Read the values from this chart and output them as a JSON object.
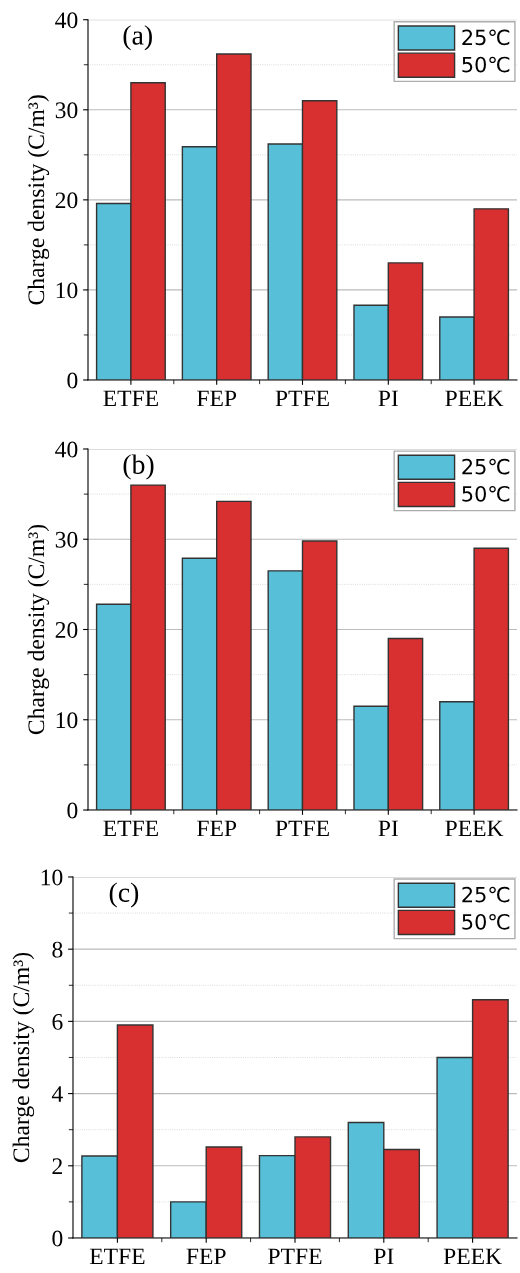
{
  "chart_data": [
    {
      "type": "bar",
      "title": "(a)",
      "ylabel": "Charge density (C/m³)",
      "categories": [
        "ETFE",
        "FEP",
        "PTFE",
        "PI",
        "PEEK"
      ],
      "series": [
        {
          "name": "25℃",
          "color": "#57c0d8",
          "values": [
            19.6,
            25.9,
            26.2,
            8.3,
            7.0
          ]
        },
        {
          "name": "50℃",
          "color": "#d83030",
          "values": [
            33.0,
            36.2,
            31.0,
            13.0,
            19.0
          ]
        }
      ],
      "ylim": [
        0,
        40
      ],
      "yticks": [
        0,
        {
          "value": 5,
          "label": null
        },
        10,
        {
          "value": 15,
          "label": null
        },
        20,
        {
          "value": 25,
          "label": null
        },
        30,
        {
          "value": 35,
          "label": null
        },
        40
      ],
      "grid": "y",
      "legend": "top right"
    },
    {
      "type": "bar",
      "title": "(b)",
      "ylabel": "Charge density (C/m³)",
      "categories": [
        "ETFE",
        "FEP",
        "PTFE",
        "PI",
        "PEEK"
      ],
      "series": [
        {
          "name": "25℃",
          "color": "#57c0d8",
          "values": [
            22.8,
            27.9,
            26.5,
            11.5,
            12.0
          ]
        },
        {
          "name": "50℃",
          "color": "#d83030",
          "values": [
            36.0,
            34.2,
            29.8,
            19.0,
            29.0
          ]
        }
      ],
      "ylim": [
        0,
        40
      ],
      "yticks": [
        0,
        {
          "value": 5,
          "label": null
        },
        10,
        {
          "value": 15,
          "label": null
        },
        20,
        {
          "value": 25,
          "label": null
        },
        30,
        {
          "value": 35,
          "label": null
        },
        40
      ],
      "grid": "y",
      "legend": "top right"
    },
    {
      "type": "bar",
      "title": "(c)",
      "ylabel": "Charge density (C/m³)",
      "categories": [
        "ETFE",
        "FEP",
        "PTFE",
        "PI",
        "PEEK"
      ],
      "series": [
        {
          "name": "25℃",
          "color": "#57c0d8",
          "values": [
            2.27,
            1.0,
            2.28,
            3.2,
            5.0
          ]
        },
        {
          "name": "50℃",
          "color": "#d83030",
          "values": [
            5.9,
            2.52,
            2.8,
            2.45,
            6.6
          ]
        }
      ],
      "ylim": [
        0,
        10
      ],
      "yticks": [
        0,
        {
          "value": 1,
          "label": null
        },
        2,
        {
          "value": 3,
          "label": null
        },
        4,
        {
          "value": 5,
          "label": null
        },
        6,
        {
          "value": 7,
          "label": null
        },
        8,
        {
          "value": 9,
          "label": null
        },
        10
      ],
      "grid": "y",
      "legend": "top right"
    }
  ]
}
